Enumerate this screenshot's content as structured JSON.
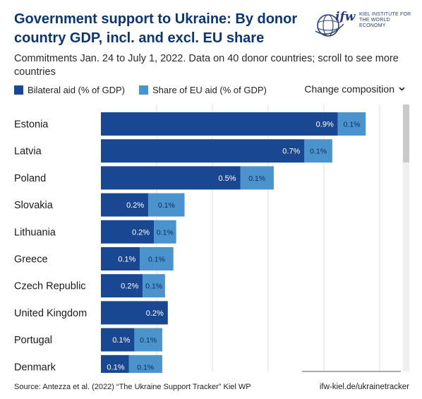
{
  "header": {
    "title": "Government support to Ukraine: By donor country GDP, incl. and excl. EU share",
    "subtitle": "Commitments Jan. 24 to July 1, 2022. Data on 40 donor countries; scroll to see more countries",
    "logo_text": "ifw",
    "logo_subtext": "KIEL INSTITUTE FOR THE WORLD ECONOMY"
  },
  "controls": {
    "dropdown_label": "Change composition"
  },
  "colors": {
    "bilateral": "#1a4792",
    "eu": "#4a93cd",
    "title": "#0b3578"
  },
  "chart_data": {
    "type": "bar",
    "orientation": "horizontal",
    "stacked": true,
    "categories": [
      "Estonia",
      "Latvia",
      "Poland",
      "Slovakia",
      "Lithuania",
      "Greece",
      "Czech Republic",
      "United Kingdom",
      "Portugal",
      "Denmark"
    ],
    "series": [
      {
        "name": "Bilateral aid (% of GDP)",
        "values": [
          0.85,
          0.73,
          0.5,
          0.17,
          0.19,
          0.14,
          0.15,
          0.24,
          0.12,
          0.1
        ],
        "labels": [
          "0.9%",
          "0.7%",
          "0.5%",
          "0.2%",
          "0.2%",
          "0.1%",
          "0.2%",
          "0.2%",
          "0.1%",
          "0.1%"
        ]
      },
      {
        "name": "Share of EU aid (% of GDP)",
        "values": [
          0.1,
          0.1,
          0.12,
          0.13,
          0.08,
          0.12,
          0.08,
          0.0,
          0.1,
          0.12
        ],
        "labels": [
          "0.1%",
          "0.1%",
          "0.1%",
          "0.1%",
          "0.1%",
          "0.1%",
          "0.1%",
          "",
          "0.1%",
          "0.1%"
        ]
      }
    ],
    "xlim": [
      0,
      1.1
    ],
    "gridlines": [
      0.2,
      0.4,
      0.6,
      0.8,
      1.0
    ],
    "grid": true,
    "legend": "top-left"
  },
  "footer": {
    "source": "Source: Antezza et al. (2022) “The Ukraine Support Tracker” Kiel WP",
    "url": "ifw-kiel.de/ukrainetracker"
  }
}
